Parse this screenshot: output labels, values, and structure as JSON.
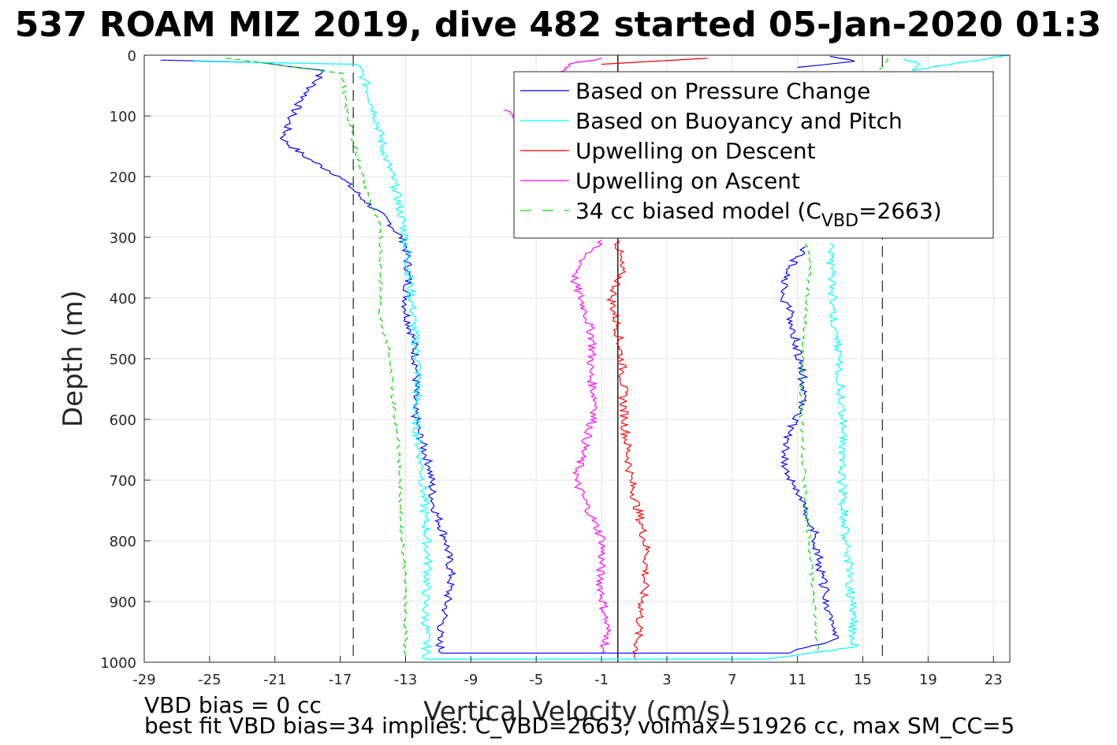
{
  "chart_data": {
    "type": "line",
    "title": "537 ROAM MIZ 2019, dive 482 started 05-Jan-2020 01:3",
    "xlabel": "Vertical Velocity (cm/s)",
    "ylabel": "Depth (m)",
    "xlim": [
      -29,
      24
    ],
    "ylim": [
      0,
      1000
    ],
    "y_reversed": true,
    "grid": true,
    "x_ticks": [
      "-29",
      "-25",
      "-21",
      "-17",
      "-13",
      "-9",
      "-5",
      "-1",
      "3",
      "7",
      "11",
      "15",
      "19",
      "23"
    ],
    "y_ticks": [
      "0",
      "100",
      "200",
      "300",
      "400",
      "500",
      "600",
      "700",
      "800",
      "900",
      "1000"
    ],
    "legend_position": "top-right",
    "legend": [
      {
        "label": "Based on Pressure Change",
        "color": "#0000ff",
        "dash": "solid"
      },
      {
        "label": "Based on Buoyancy and Pitch",
        "color": "#00ffff",
        "dash": "solid"
      },
      {
        "label": "Upwelling on Descent",
        "color": "#ff0000",
        "dash": "solid"
      },
      {
        "label": "Upwelling on Ascent",
        "color": "#ff00ff",
        "dash": "solid"
      },
      {
        "label_main": "34 cc biased model (C",
        "label_sub": "VBD",
        "label_end": "=2663)",
        "color": "#00dd00",
        "dash": "dashed"
      }
    ],
    "reference_lines": [
      {
        "x": -16.2,
        "style": "dashed",
        "color": "#333333"
      },
      {
        "x": 16.2,
        "style": "dashed",
        "color": "#333333"
      },
      {
        "x": 0,
        "style": "solid",
        "color": "#000000"
      }
    ],
    "series": [
      {
        "color": "#0000ff",
        "points_descent": [
          [
            -28,
            8
          ],
          [
            -22,
            12
          ],
          [
            -18,
            25
          ],
          [
            -19,
            60
          ],
          [
            -20,
            100
          ],
          [
            -20.5,
            140
          ],
          [
            -19,
            170
          ],
          [
            -17,
            200
          ],
          [
            -15.5,
            240
          ],
          [
            -14,
            275
          ],
          [
            -13,
            310
          ],
          [
            -12.8,
            360
          ],
          [
            -13,
            420
          ],
          [
            -12.5,
            470
          ],
          [
            -12.3,
            520
          ],
          [
            -12.5,
            580
          ],
          [
            -12.2,
            620
          ],
          [
            -11.5,
            680
          ],
          [
            -11.3,
            740
          ],
          [
            -10.5,
            800
          ],
          [
            -10.2,
            860
          ],
          [
            -10.6,
            920
          ],
          [
            -11,
            960
          ],
          [
            -10.8,
            985
          ]
        ],
        "points_ascent": [
          [
            10.5,
            985
          ],
          [
            13.5,
            960
          ],
          [
            13,
            920
          ],
          [
            12.5,
            860
          ],
          [
            12,
            780
          ],
          [
            11,
            720
          ],
          [
            10.2,
            680
          ],
          [
            10.5,
            620
          ],
          [
            11.5,
            560
          ],
          [
            11,
            480
          ],
          [
            10.5,
            420
          ],
          [
            10,
            390
          ],
          [
            10.5,
            350
          ],
          [
            11.5,
            315
          ]
        ],
        "points_near_surface": [
          [
            11,
            20
          ],
          [
            14.5,
            10
          ],
          [
            13,
            2
          ]
        ]
      },
      {
        "color": "#00ffff",
        "points_descent": [
          [
            -26,
            10
          ],
          [
            -16,
            15
          ],
          [
            -15.5,
            40
          ],
          [
            -14.8,
            100
          ],
          [
            -14.3,
            160
          ],
          [
            -13.6,
            220
          ],
          [
            -13,
            300
          ],
          [
            -12.7,
            380
          ],
          [
            -12.5,
            440
          ],
          [
            -12.2,
            520
          ],
          [
            -12.4,
            600
          ],
          [
            -12,
            680
          ],
          [
            -11.8,
            760
          ],
          [
            -11.6,
            840
          ],
          [
            -11.8,
            900
          ],
          [
            -11.7,
            995
          ]
        ],
        "points_ascent": [
          [
            9,
            995
          ],
          [
            14.5,
            975
          ],
          [
            14.3,
            900
          ],
          [
            14,
            800
          ],
          [
            13.7,
            700
          ],
          [
            13.8,
            600
          ],
          [
            13.5,
            500
          ],
          [
            13.2,
            420
          ],
          [
            13.1,
            360
          ],
          [
            13,
            310
          ]
        ],
        "points_near_surface": [
          [
            17.5,
            5
          ],
          [
            18.5,
            15
          ],
          [
            18,
            25
          ],
          [
            24,
            0
          ]
        ]
      },
      {
        "color": "#ff0000",
        "points": [
          [
            0,
            305
          ],
          [
            0.2,
            360
          ],
          [
            -0.4,
            400
          ],
          [
            0,
            450
          ],
          [
            0.3,
            520
          ],
          [
            0.4,
            600
          ],
          [
            0.8,
            700
          ],
          [
            1.5,
            780
          ],
          [
            1.8,
            820
          ],
          [
            1.6,
            880
          ],
          [
            1.3,
            940
          ],
          [
            1.1,
            995
          ]
        ],
        "points_near_surface": [
          [
            -1,
            15
          ],
          [
            5.5,
            5
          ]
        ]
      },
      {
        "color": "#ff00ff",
        "points": [
          [
            -1,
            305
          ],
          [
            -2,
            330
          ],
          [
            -2.7,
            370
          ],
          [
            -2,
            420
          ],
          [
            -1.5,
            470
          ],
          [
            -1.7,
            520
          ],
          [
            -1.3,
            580
          ],
          [
            -2,
            640
          ],
          [
            -2.6,
            700
          ],
          [
            -1.6,
            760
          ],
          [
            -0.9,
            800
          ],
          [
            -1.1,
            860
          ],
          [
            -0.8,
            920
          ],
          [
            -0.6,
            960
          ],
          [
            -1,
            985
          ]
        ],
        "points_near_surface": [
          [
            -7,
            90
          ],
          [
            -6,
            105
          ],
          [
            -3,
            15
          ],
          [
            -1,
            5
          ]
        ]
      },
      {
        "color": "#00dd00",
        "dash": "dashed",
        "points_descent": [
          [
            -24,
            5
          ],
          [
            -16.8,
            30
          ],
          [
            -16.7,
            80
          ],
          [
            -16,
            160
          ],
          [
            -15.3,
            230
          ],
          [
            -14.5,
            290
          ],
          [
            -14.5,
            350
          ],
          [
            -14.6,
            420
          ],
          [
            -14,
            490
          ],
          [
            -13.8,
            560
          ],
          [
            -13.4,
            640
          ],
          [
            -13.3,
            720
          ],
          [
            -13.2,
            800
          ],
          [
            -13,
            880
          ],
          [
            -13,
            995
          ]
        ],
        "points_ascent": [
          [
            12.2,
            980
          ],
          [
            12,
            900
          ],
          [
            11.8,
            820
          ],
          [
            11.5,
            740
          ],
          [
            11.3,
            640
          ],
          [
            11.2,
            560
          ],
          [
            11.3,
            480
          ],
          [
            11.6,
            400
          ],
          [
            11.8,
            330
          ],
          [
            11.5,
            310
          ]
        ],
        "points_near_surface": [
          [
            16.5,
            5
          ],
          [
            16,
            30
          ]
        ]
      }
    ],
    "footer_notes": [
      "VBD bias = 0 cc",
      "best fit VBD bias=34 implies: C_VBD=2663, volmax=51926 cc, max SM_CC=5"
    ]
  }
}
